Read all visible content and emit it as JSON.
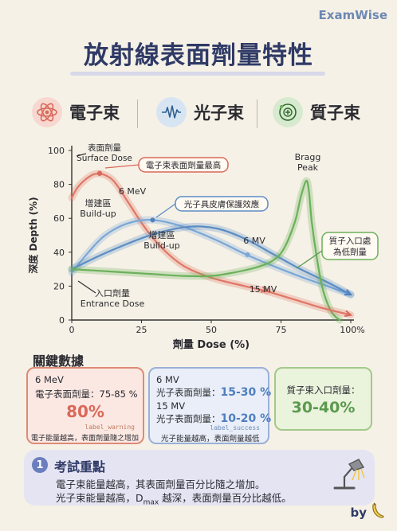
{
  "brand": "ExamWise",
  "title": "放射線表面劑量特性",
  "categories": [
    {
      "label": "電子束",
      "icon": "atom-icon",
      "color": "#d9695a",
      "bg": "#f7d8d0"
    },
    {
      "label": "光子束",
      "icon": "wave-icon",
      "color": "#5b8dc4",
      "bg": "#d7e5f3"
    },
    {
      "label": "質子束",
      "icon": "proton-icon",
      "color": "#5b9a4e",
      "bg": "#d7ead0"
    }
  ],
  "chart_data": {
    "type": "line",
    "xlabel": "劑量 Dose (%)",
    "ylabel": "深度 Depth (%)",
    "xlim": [
      0,
      100
    ],
    "ylim": [
      0,
      100
    ],
    "x_ticks": [
      "0",
      "25",
      "50",
      "75",
      "100%"
    ],
    "y_ticks": [
      "0",
      "20",
      "40",
      "60",
      "80",
      "100"
    ],
    "series": [
      {
        "name": "6 MeV",
        "color": "#e07666",
        "points": [
          [
            0,
            72
          ],
          [
            2,
            78
          ],
          [
            5,
            83
          ],
          [
            8,
            86
          ],
          [
            11,
            86
          ],
          [
            15,
            82
          ],
          [
            20,
            70
          ],
          [
            26,
            55
          ],
          [
            32,
            43
          ],
          [
            40,
            32
          ],
          [
            50,
            25
          ],
          [
            62,
            20
          ],
          [
            70,
            17
          ]
        ]
      },
      {
        "name": "6 MV",
        "color": "#7aa7d6",
        "points": [
          [
            0,
            28
          ],
          [
            6,
            40
          ],
          [
            12,
            50
          ],
          [
            20,
            57
          ],
          [
            29,
            59
          ],
          [
            40,
            55
          ],
          [
            52,
            47
          ],
          [
            62,
            39
          ],
          [
            72,
            32
          ],
          [
            83,
            25
          ],
          [
            95,
            18
          ],
          [
            100,
            15
          ]
        ]
      },
      {
        "name": "15 MV",
        "color": "#5b8dc4",
        "points": [
          [
            0,
            30
          ],
          [
            10,
            38
          ],
          [
            20,
            45
          ],
          [
            30,
            51
          ],
          [
            42,
            55
          ],
          [
            52,
            54
          ],
          [
            62,
            48
          ],
          [
            72,
            39
          ],
          [
            82,
            30
          ],
          [
            92,
            22
          ],
          [
            100,
            15
          ]
        ]
      },
      {
        "name": "質子束",
        "color": "#6bb05a",
        "points": [
          [
            0,
            30
          ],
          [
            10,
            29
          ],
          [
            20,
            28
          ],
          [
            30,
            27
          ],
          [
            40,
            26
          ],
          [
            50,
            26
          ],
          [
            58,
            28
          ],
          [
            66,
            31
          ],
          [
            72,
            35
          ],
          [
            76,
            42
          ],
          [
            80,
            58
          ],
          [
            82,
            72
          ],
          [
            84,
            82
          ],
          [
            85,
            76
          ],
          [
            86,
            58
          ],
          [
            88,
            35
          ],
          [
            90,
            18
          ],
          [
            93,
            5
          ],
          [
            96,
            0
          ]
        ]
      },
      {
        "name": "electron_tail",
        "color": "#e07666",
        "points": [
          [
            70,
            17
          ],
          [
            80,
            12
          ],
          [
            90,
            7
          ],
          [
            100,
            3
          ]
        ]
      }
    ],
    "annotations": [
      {
        "text": "表面劑量\nSurface Dose"
      },
      {
        "text": "電子束表面劑量最高"
      },
      {
        "text": "6 MeV"
      },
      {
        "text": "增建區\nBuild-up"
      },
      {
        "text": "光子具皮膚保護效應"
      },
      {
        "text": "增建區\nBuild-up"
      },
      {
        "text": "6 MV"
      },
      {
        "text": "Bragg\nPeak"
      },
      {
        "text": "質子入口處\n為低劑量"
      },
      {
        "text": "入口劑量\nEntrance Dose"
      },
      {
        "text": "15 MV"
      }
    ]
  },
  "key_data": {
    "title": "關鍵數據",
    "electron": {
      "energy": "6 MeV",
      "label": "電子表面劑量：75-85 %",
      "value": "80%",
      "tag": "label_warning",
      "note": "電子能量越高，表面劑量隨之增加"
    },
    "photon": {
      "line1_energy": "6 MV",
      "line1_label": "光子表面劑量：",
      "line1_value": "15-30 %",
      "line2_energy": "15 MV",
      "line2_label": "光子表面劑量：",
      "line2_value": "10-20 %",
      "tag": "label_success",
      "note": "光子能量越高，表面劑量越低"
    },
    "proton": {
      "label": "質子束入口劑量：",
      "value": "30-40%"
    }
  },
  "exam": {
    "number": "1",
    "title": "考試重點",
    "line1": "電子束能量越高，其表面劑量百分比隨之增加。",
    "line2_pre": "光子束能量越高，D",
    "line2_sub": "max",
    "line2_post": " 越深，表面劑量百分比越低。"
  },
  "footer": {
    "by": "by"
  }
}
